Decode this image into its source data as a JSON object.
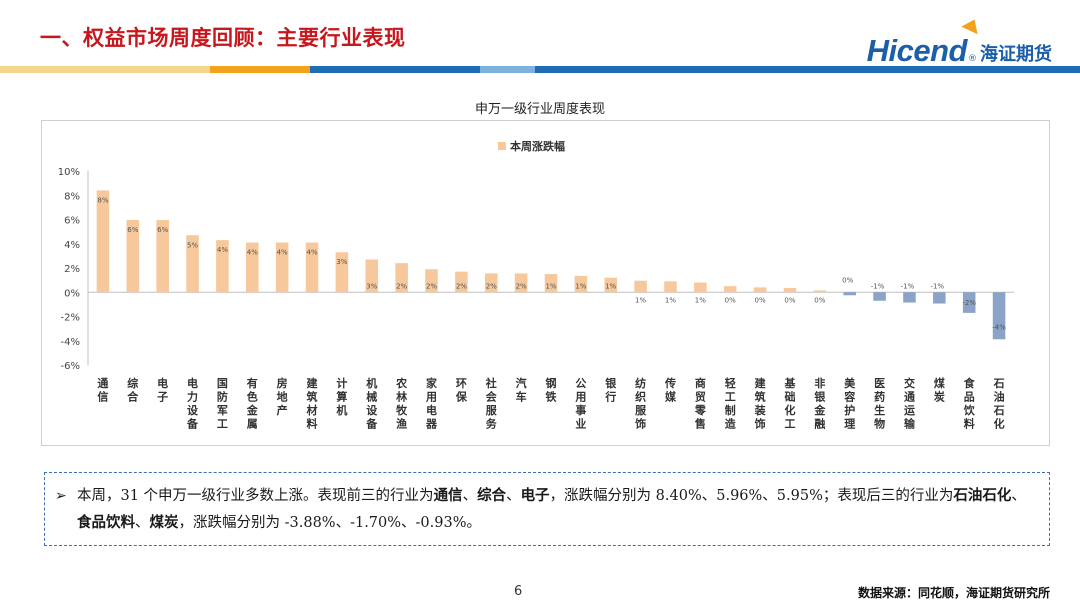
{
  "header": {
    "title": "一、权益市场周度回顾：主要行业表现",
    "logo_text": "Hicend",
    "logo_reg": "®",
    "logo_cn": "海证期货"
  },
  "colors": {
    "title_red": "#c8161d",
    "band": [
      "#f6d58d",
      "#f2a21b",
      "#1f6cb5",
      "#7fb1de",
      "#1f6cb5"
    ],
    "bar_pos": "#f6c89b",
    "bar_neg": "#8aa3c7",
    "logo_blue": "#1d5ea8"
  },
  "chart_data": {
    "type": "bar",
    "title": "申万一级行业周度表现",
    "legend": "本周涨跌幅",
    "ylim": [
      -6,
      10
    ],
    "yticks": [
      10,
      8,
      6,
      4,
      2,
      0,
      -2,
      -4,
      -6
    ],
    "ytick_labels": [
      "10%",
      "8%",
      "6%",
      "4%",
      "2%",
      "0%",
      "-2%",
      "-4%",
      "-6%"
    ],
    "categories": [
      "通信",
      "综合",
      "电子",
      "电力设备",
      "国防军工",
      "有色金属",
      "房地产",
      "建筑材料",
      "计算机",
      "机械设备",
      "农林牧渔",
      "家用电器",
      "环保",
      "社会服务",
      "汽车",
      "钢铁",
      "公用事业",
      "银行",
      "纺织服饰",
      "传媒",
      "商贸零售",
      "轻工制造",
      "建筑装饰",
      "基础化工",
      "非银金融",
      "美容护理",
      "医药生物",
      "交通运输",
      "煤炭",
      "食品饮料",
      "石油石化"
    ],
    "values": [
      8.4,
      5.96,
      5.95,
      4.7,
      4.3,
      4.1,
      4.1,
      4.1,
      3.3,
      2.7,
      2.4,
      1.9,
      1.7,
      1.55,
      1.55,
      1.5,
      1.35,
      1.2,
      0.95,
      0.9,
      0.8,
      0.5,
      0.4,
      0.35,
      0.15,
      -0.25,
      -0.7,
      -0.85,
      -0.93,
      -1.7,
      -3.88
    ],
    "data_labels": [
      "8%",
      "6%",
      "6%",
      "5%",
      "4%",
      "4%",
      "4%",
      "4%",
      "3%",
      "3%",
      "2%",
      "2%",
      "2%",
      "2%",
      "2%",
      "1%",
      "1%",
      "1%",
      "1%",
      "1%",
      "1%",
      "0%",
      "0%",
      "0%",
      "0%",
      "0%",
      "-1%",
      "-1%",
      "-1%",
      "-2%",
      "-4%"
    ]
  },
  "summary": {
    "bullet": "➢",
    "p1": "本周，31 个申万一级行业多数上涨。表现前三的行业为",
    "top": [
      "通信",
      "综合",
      "电子"
    ],
    "p2": "，涨跌幅分别为 8.40%、5.96%、5.95%；表现后三的行业为",
    "bottom": [
      "石油石化",
      "食品饮料",
      "煤炭"
    ],
    "p3": "，涨跌幅分别为 -3.88%、-1.70%、-0.93%。",
    "sep": "、"
  },
  "footer": {
    "page": "6",
    "source": "数据来源：同花顺，海证期货研究所"
  }
}
